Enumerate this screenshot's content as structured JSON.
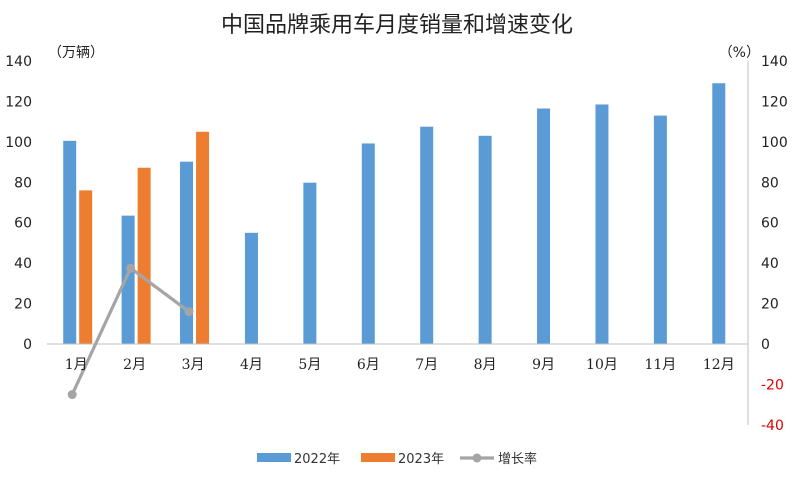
{
  "chart_data": {
    "type": "bar",
    "title": "中国品牌乘用车月度销量和增速变化",
    "left_axis_unit": "（万辆）",
    "right_axis_unit": "（%）",
    "categories": [
      "1月",
      "2月",
      "3月",
      "4月",
      "5月",
      "6月",
      "7月",
      "8月",
      "9月",
      "10月",
      "11月",
      "12月"
    ],
    "series": [
      {
        "name": "2022年",
        "type": "bar",
        "axis": "left",
        "color": "#5b9bd5",
        "values": [
          100.5,
          63.5,
          90.2,
          55.0,
          79.8,
          99.2,
          107.5,
          103.0,
          116.5,
          118.5,
          113.0,
          129.0
        ]
      },
      {
        "name": "2023年",
        "type": "bar",
        "axis": "left",
        "color": "#ed7d31",
        "values": [
          76.0,
          87.2,
          105.0,
          null,
          null,
          null,
          null,
          null,
          null,
          null,
          null,
          null
        ]
      },
      {
        "name": "增长率",
        "type": "line",
        "axis": "right",
        "color": "#a5a5a5",
        "values": [
          -25,
          37.5,
          16,
          null,
          null,
          null,
          null,
          null,
          null,
          null,
          null,
          null
        ]
      }
    ],
    "left_ylim": [
      0,
      140
    ],
    "left_ticks": [
      "140",
      "120",
      "100",
      "80",
      "60",
      "40",
      "20",
      "0"
    ],
    "right_ylim": [
      -40,
      140
    ],
    "right_ticks": [
      "140",
      "120",
      "100",
      "80",
      "60",
      "40",
      "20",
      "0",
      "-20",
      "-40"
    ],
    "legend_position": "bottom",
    "grid": false,
    "negative_tick_color": "#e00000"
  }
}
